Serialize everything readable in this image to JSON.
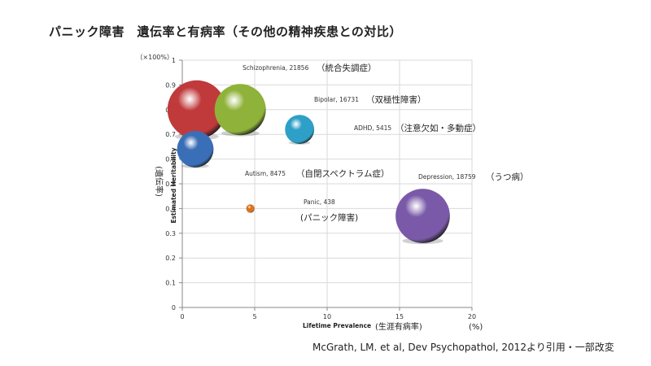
{
  "slide": {
    "title": "パニック障害　遺伝率と有病率（その他の精神疾患との対比）",
    "citation": "McGrath, LM. et al, Dev Psychopathol, 2012より引用・一部改変"
  },
  "chart_data": {
    "type": "bubble",
    "title": "",
    "xlabel": "Lifetime Prevalence",
    "xlabel_jp": "(生涯有病率)",
    "x_unit": "(%)",
    "ylabel": "Estimated Heritability",
    "ylabel_jp": "(遺伝率)",
    "y_unit": "（×100%）",
    "xlim": [
      0,
      20
    ],
    "ylim": [
      0,
      1
    ],
    "x_ticks": [
      0,
      5,
      10,
      15,
      20
    ],
    "y_ticks": [
      0,
      0.1,
      0.2,
      0.3,
      0.4,
      0.5,
      0.6,
      0.7,
      0.8,
      0.9,
      1
    ],
    "grid": true,
    "series": [
      {
        "label": "Schizophrenia, 21856",
        "label_jp": "（統合失調症）",
        "x": 1.0,
        "y": 0.8,
        "size": 21856,
        "color": "#c0393b",
        "label_side": "above"
      },
      {
        "label": "Bipolar, 16731",
        "label_jp": "（双極性障害）",
        "x": 4.0,
        "y": 0.8,
        "size": 16731,
        "color": "#8fb23a",
        "label_side": "right"
      },
      {
        "label": "ADHD, 5415",
        "label_jp": "（注意欠如・多動症）",
        "x": 8.1,
        "y": 0.72,
        "size": 5415,
        "color": "#2e9fc6",
        "label_side": "right"
      },
      {
        "label": "Autism, 8475",
        "label_jp": "（自閉スペクトラム症）",
        "x": 0.9,
        "y": 0.64,
        "size": 8475,
        "color": "#3a6fb8",
        "label_side": "below"
      },
      {
        "label": "Depression, 18759",
        "label_jp": "（うつ病）",
        "x": 16.6,
        "y": 0.37,
        "size": 18759,
        "color": "#7a5aa8",
        "label_side": "above"
      },
      {
        "label": "Panic, 438",
        "label_jp": "(パニック障害)",
        "x": 4.7,
        "y": 0.4,
        "size": 438,
        "color": "#d8741f",
        "label_side": "right"
      }
    ]
  }
}
